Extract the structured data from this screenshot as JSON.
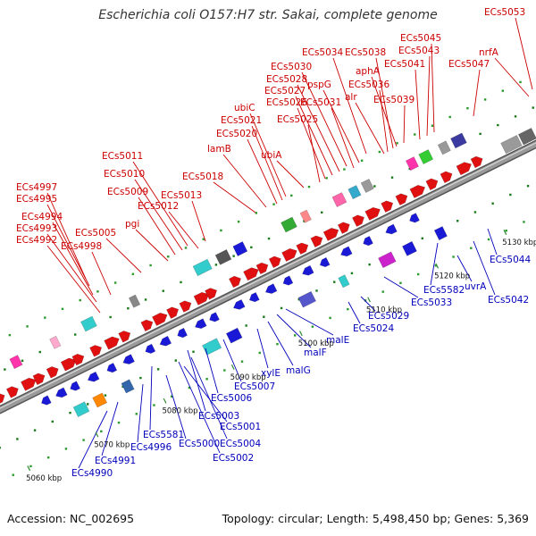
{
  "title": "Escherichia coli O157:H7 str. Sakai, complete genome",
  "footer": {
    "accession": "Accession: NC_002695",
    "summary": "Topology: circular; Length: 5,498,450 bp; Genes: 5,369"
  },
  "colors": {
    "forward_label": "#cc0000",
    "reverse_label": "#0000bb",
    "backbone": "#9a9a9a",
    "scale_tick": "#2e8b2e"
  },
  "scale_ticks": [
    "5060 kbp",
    "5070 kbp",
    "5080 kbp",
    "5090 kbp",
    "5100 kbp",
    "5110 kbp",
    "5120 kbp",
    "5130 kbp"
  ],
  "forward_genes": [
    "ECs4992",
    "ECs4993",
    "ECs4994",
    "ECs4995",
    "ECs4997",
    "ECs4998",
    "ECs5005",
    "pgi",
    "ECs5009",
    "ECs5010",
    "ECs5011",
    "ECs5012",
    "ECs5013",
    "ECs5018",
    "lamB",
    "ECs5020",
    "ECs5021",
    "ubiC",
    "ubiA",
    "ECs5025",
    "ECs5026",
    "ECs5027",
    "ECs5028",
    "ECs5030",
    "ECs5034",
    "ECs5031",
    "pspG",
    "alr",
    "ECs5036",
    "ECs5038",
    "aphA",
    "ECs5039",
    "ECs5041",
    "ECs5043",
    "ECs5045",
    "ECs5047",
    "nrfA",
    "ECs5053"
  ],
  "reverse_genes": [
    "ECs4990",
    "ECs4991",
    "ECs4996",
    "ECs5581",
    "ECs5000",
    "ECs5002",
    "ECs5001",
    "ECs5004",
    "ECs5003",
    "ECs5006",
    "ECs5007",
    "xylE",
    "malG",
    "malF",
    "malE",
    "ECs5024",
    "ECs5029",
    "ECs5033",
    "ECs5582",
    "uvrA",
    "ECs5042",
    "ECs5044"
  ]
}
